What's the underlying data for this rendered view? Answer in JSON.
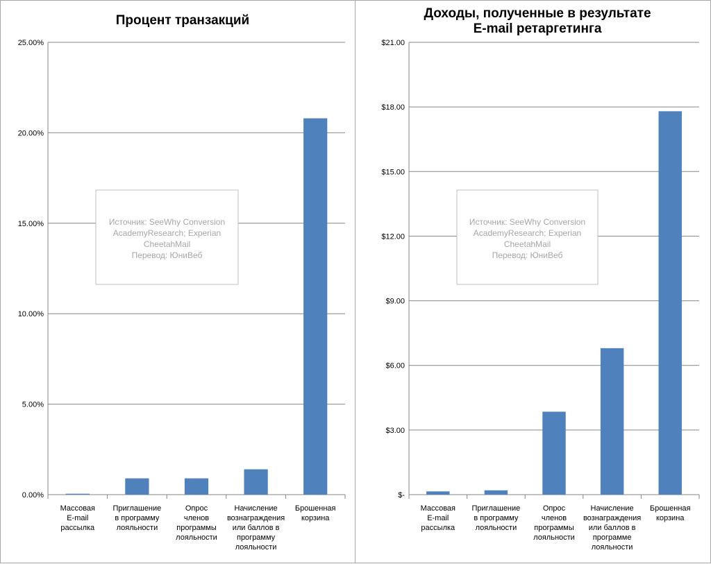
{
  "chart_data": [
    {
      "type": "bar",
      "title": [
        "Процент транзакций"
      ],
      "categories": [
        [
          "Массовая",
          "E-mail",
          "рассылка"
        ],
        [
          "Приглашение",
          "в программу",
          "лояльности"
        ],
        [
          "Опрос",
          "членов",
          "программы",
          "лояльности"
        ],
        [
          "Начисление",
          "вознаграждения",
          "или баллов в",
          "программу",
          "лояльности"
        ],
        [
          "Брошенная",
          "корзина"
        ]
      ],
      "values": [
        0.05,
        0.9,
        0.9,
        1.4,
        20.8
      ],
      "ylim": [
        0,
        25
      ],
      "yticks": [
        "0.00%",
        "5.00%",
        "10.00%",
        "15.00%",
        "20.00%",
        "25.00%"
      ],
      "grid": true,
      "color": "#4f81bd",
      "note": [
        "Источник: SeeWhy Conversion",
        "AcademyResearch; Experian",
        "CheetahMail",
        "Перевод: ЮниВеб"
      ]
    },
    {
      "type": "bar",
      "title": [
        "Доходы, полученные в результате",
        "E-mail ретаргетинга"
      ],
      "categories": [
        [
          "Массовая",
          "E-mail",
          "рассылка"
        ],
        [
          "Приглашение",
          "в программу",
          "лояльности"
        ],
        [
          "Опрос",
          "членов",
          "программы",
          "лояльности"
        ],
        [
          "Начисление",
          "вознаграждения",
          "или баллов в",
          "программе",
          "лояльности"
        ],
        [
          "Брошенная",
          "корзина"
        ]
      ],
      "values": [
        0.15,
        0.2,
        3.85,
        6.8,
        17.8
      ],
      "ylim": [
        0,
        21
      ],
      "yticks": [
        "$-",
        "$3.00",
        "$6.00",
        "$9.00",
        "$12.00",
        "$15.00",
        "$18.00",
        "$21.00"
      ],
      "grid": true,
      "color": "#4f81bd",
      "note": [
        "Источник: SeeWhy Conversion",
        "AcademyResearch; Experian",
        "CheetahMail",
        "Перевод: ЮниВеб"
      ]
    }
  ]
}
